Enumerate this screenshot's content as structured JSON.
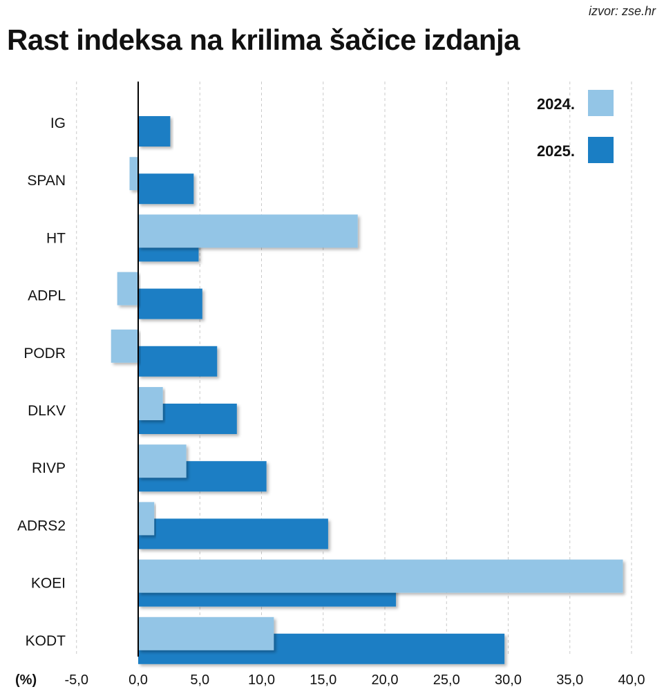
{
  "source": "izvor: zse.hr",
  "title": "Rast indeksa na krilima šačice izdanja",
  "chart_data": {
    "type": "bar",
    "orientation": "horizontal",
    "title": "Rast indeksa na krilima šačice izdanja",
    "unit_label": "(%)",
    "categories": [
      "IG",
      "SPAN",
      "HT",
      "ADPL",
      "PODR",
      "DLKV",
      "RIVP",
      "ADRS2",
      "KOEI",
      "KODT"
    ],
    "series": [
      {
        "name": "2024.",
        "color": "#93c5e6",
        "values": [
          0.0,
          -0.7,
          17.8,
          -1.7,
          -2.2,
          2.0,
          3.9,
          1.3,
          39.3,
          11.0
        ]
      },
      {
        "name": "2025.",
        "color": "#1a7ec4",
        "values": [
          2.6,
          4.5,
          4.9,
          5.2,
          6.4,
          8.0,
          10.4,
          15.4,
          20.9,
          29.7
        ]
      }
    ],
    "xlim": [
      -5,
      40
    ],
    "xticks": [
      -5,
      0,
      5,
      10,
      15,
      20,
      25,
      30,
      35,
      40
    ],
    "xtick_labels": [
      "-5,0",
      "0,0",
      "5,0",
      "10,0",
      "15,0",
      "20,0",
      "25,0",
      "30,0",
      "35,0",
      "40,0"
    ],
    "grid": "vertical dashed",
    "legend_position": "top-right"
  }
}
